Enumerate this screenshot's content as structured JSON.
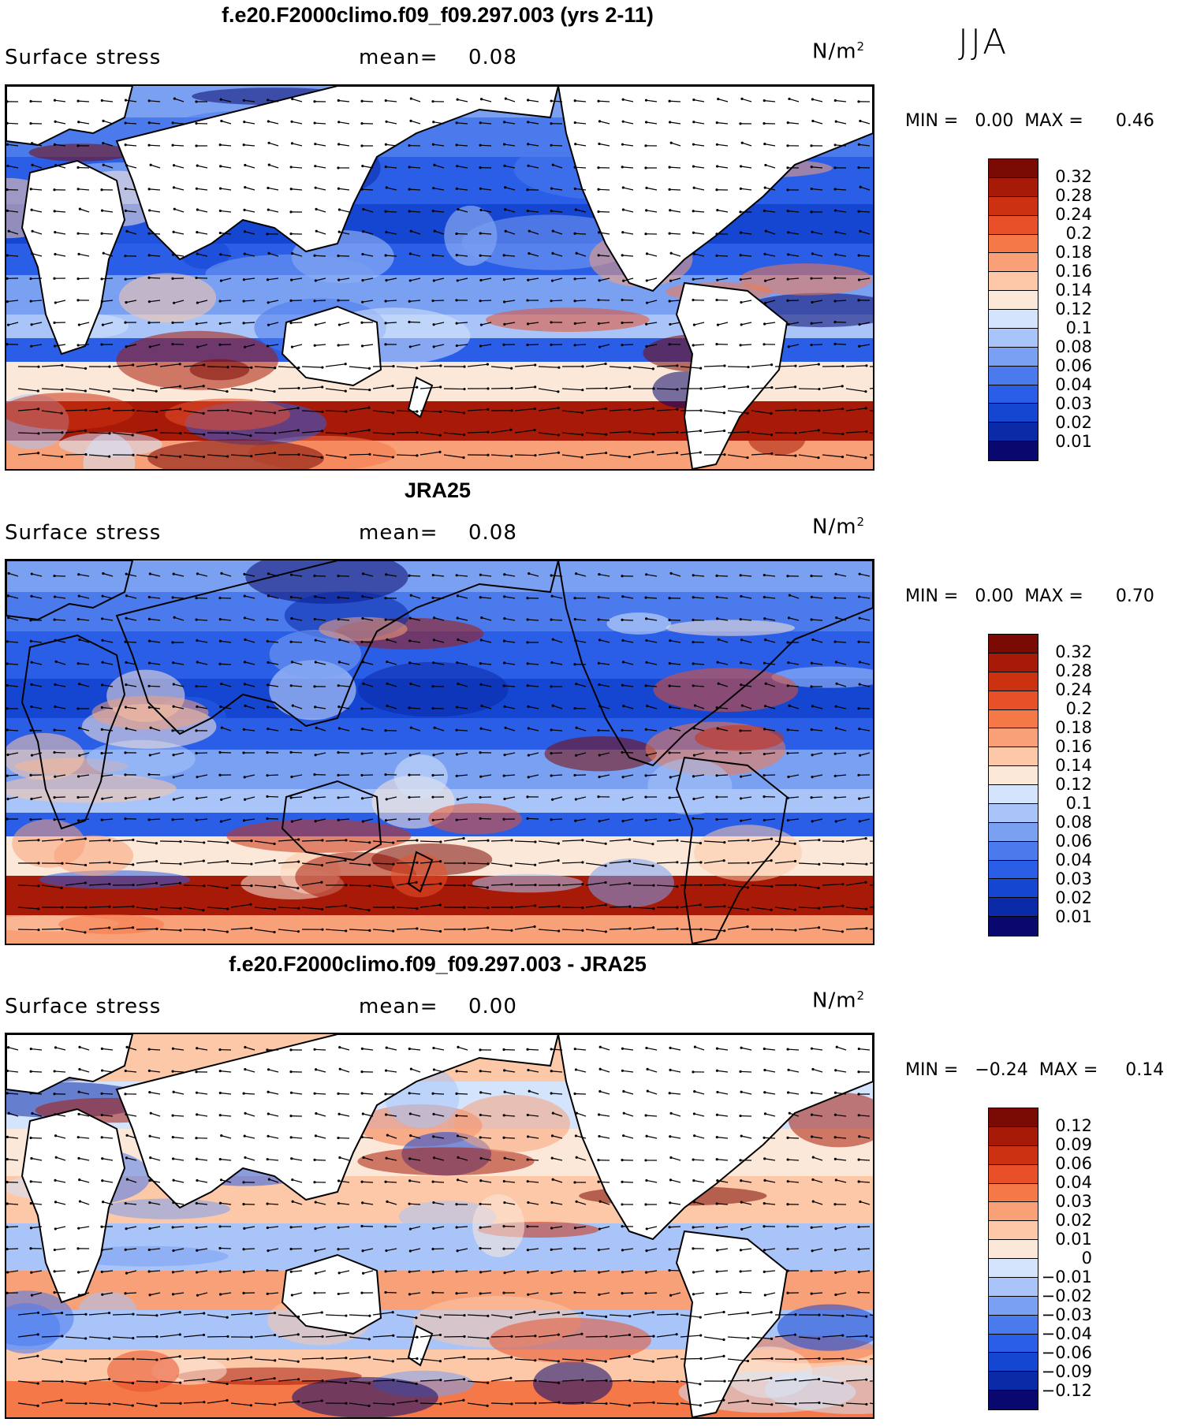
{
  "season": "JJA",
  "colors": {
    "land": "#ffffff",
    "coast": "#000000",
    "abs_scale": [
      "#08086e",
      "#0a2aa8",
      "#1446d2",
      "#2a5ee6",
      "#4a7aec",
      "#7aa0f2",
      "#a8c4f8",
      "#d4e4fc",
      "#fce8d8",
      "#fcc8a8",
      "#f8a078",
      "#f47848",
      "#e8502a",
      "#cc3212",
      "#a81a08",
      "#7a0a04"
    ],
    "diff_scale": [
      "#08086e",
      "#0a2aa8",
      "#1446d2",
      "#2a5ee6",
      "#4a7aec",
      "#7aa0f2",
      "#a8c4f8",
      "#d4e4fc",
      "#fce8d8",
      "#fcc8a8",
      "#f8a078",
      "#f47848",
      "#e8502a",
      "#cc3212",
      "#a81a08",
      "#7a0a04"
    ]
  },
  "panels": [
    {
      "title": "f.e20.F2000climo.f09_f09.297.003 (yrs 2-11)",
      "variable": "Surface stress",
      "mean_label": "mean=",
      "mean_value": "0.08",
      "units": "N/m",
      "units_exp": "2",
      "min_label": "MIN =",
      "min_value": "0.00",
      "max_label": "MAX =",
      "max_value": "0.46",
      "colorbar_ticks": [
        "0.32",
        "0.28",
        "0.24",
        "0.2",
        "0.18",
        "0.16",
        "0.14",
        "0.12",
        "0.1",
        "0.08",
        "0.06",
        "0.04",
        "0.03",
        "0.02",
        "0.01"
      ]
    },
    {
      "title": "JRA25",
      "variable": "Surface stress",
      "mean_label": "mean=",
      "mean_value": "0.08",
      "units": "N/m",
      "units_exp": "2",
      "min_label": "MIN =",
      "min_value": "0.00",
      "max_label": "MAX =",
      "max_value": "0.70",
      "colorbar_ticks": [
        "0.32",
        "0.28",
        "0.24",
        "0.2",
        "0.18",
        "0.16",
        "0.14",
        "0.12",
        "0.1",
        "0.08",
        "0.06",
        "0.04",
        "0.03",
        "0.02",
        "0.01"
      ]
    },
    {
      "title": "f.e20.F2000climo.f09_f09.297.003 - JRA25",
      "variable": "Surface stress",
      "mean_label": "mean=",
      "mean_value": "0.00",
      "units": "N/m",
      "units_exp": "2",
      "min_label": "MIN =",
      "min_value": "−0.24",
      "max_label": "MAX =",
      "max_value": "0.14",
      "colorbar_ticks": [
        "0.12",
        "0.09",
        "0.06",
        "0.04",
        "0.03",
        "0.02",
        "0.01",
        "0",
        "−0.01",
        "−0.02",
        "−0.03",
        "−0.04",
        "−0.06",
        "−0.09",
        "−0.12"
      ]
    }
  ]
}
